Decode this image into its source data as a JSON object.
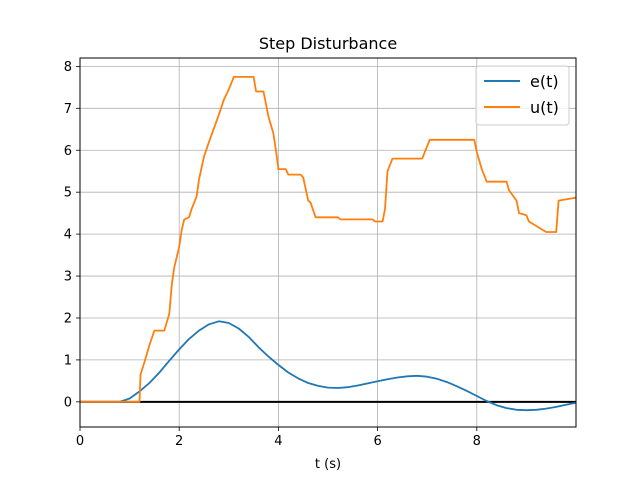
{
  "chart_data": {
    "type": "line",
    "title": "Step Disturbance",
    "xlabel": "t (s)",
    "ylabel": "",
    "xlim": [
      0,
      10
    ],
    "ylim": [
      -0.6,
      8.2
    ],
    "x_ticks": [
      0,
      2,
      4,
      6,
      8
    ],
    "x_tick_labels": [
      "0",
      "2",
      "4",
      "6",
      "8"
    ],
    "y_ticks": [
      0,
      1,
      2,
      3,
      4,
      5,
      6,
      7,
      8
    ],
    "y_tick_labels": [
      "0",
      "1",
      "2",
      "3",
      "4",
      "5",
      "6",
      "7",
      "8"
    ],
    "grid": true,
    "legend_position": "top-right",
    "reference_line": {
      "y": 0,
      "color": "#000000"
    },
    "series": [
      {
        "name": "e(t)",
        "color": "#1f77b4",
        "x": [
          0,
          0.8,
          1.0,
          1.2,
          1.4,
          1.6,
          1.8,
          2.0,
          2.2,
          2.4,
          2.6,
          2.8,
          3.0,
          3.2,
          3.4,
          3.6,
          3.8,
          4.0,
          4.2,
          4.4,
          4.6,
          4.8,
          5.0,
          5.2,
          5.4,
          5.6,
          5.8,
          6.0,
          6.2,
          6.4,
          6.6,
          6.8,
          7.0,
          7.2,
          7.4,
          7.6,
          7.8,
          8.0,
          8.2,
          8.4,
          8.6,
          8.8,
          9.0,
          9.2,
          9.4,
          9.6,
          9.8,
          10.0
        ],
        "y": [
          0,
          0,
          0.08,
          0.25,
          0.45,
          0.7,
          0.98,
          1.25,
          1.5,
          1.7,
          1.85,
          1.92,
          1.88,
          1.75,
          1.55,
          1.3,
          1.08,
          0.88,
          0.7,
          0.56,
          0.45,
          0.38,
          0.34,
          0.33,
          0.35,
          0.39,
          0.44,
          0.49,
          0.54,
          0.58,
          0.61,
          0.62,
          0.6,
          0.55,
          0.47,
          0.37,
          0.26,
          0.14,
          0.02,
          -0.08,
          -0.15,
          -0.19,
          -0.2,
          -0.19,
          -0.16,
          -0.12,
          -0.07,
          -0.02
        ]
      },
      {
        "name": "u(t)",
        "color": "#ff7f0e",
        "x": [
          0,
          1.2,
          1.22,
          1.3,
          1.4,
          1.5,
          1.55,
          1.6,
          1.7,
          1.8,
          1.85,
          1.9,
          2.0,
          2.05,
          2.1,
          2.2,
          2.25,
          2.35,
          2.4,
          2.5,
          2.6,
          2.8,
          2.9,
          3.0,
          3.1,
          3.15,
          3.5,
          3.55,
          3.7,
          3.8,
          3.9,
          3.95,
          4.0,
          4.15,
          4.2,
          4.45,
          4.5,
          4.6,
          4.65,
          4.75,
          4.8,
          5.2,
          5.25,
          5.9,
          5.95,
          6.1,
          6.15,
          6.2,
          6.3,
          6.4,
          6.9,
          7.0,
          7.05,
          7.95,
          8.0,
          8.1,
          8.2,
          8.25,
          8.6,
          8.65,
          8.8,
          8.85,
          9.0,
          9.05,
          9.4,
          9.45,
          9.6,
          9.65,
          10.0
        ],
        "y": [
          0,
          0,
          0.65,
          0.95,
          1.35,
          1.7,
          1.7,
          1.7,
          1.7,
          2.1,
          2.8,
          3.2,
          3.7,
          4.1,
          4.35,
          4.4,
          4.6,
          4.9,
          5.3,
          5.85,
          6.2,
          6.85,
          7.2,
          7.45,
          7.75,
          7.75,
          7.75,
          7.4,
          7.4,
          6.8,
          6.4,
          6.0,
          5.55,
          5.55,
          5.42,
          5.42,
          5.35,
          4.8,
          4.75,
          4.4,
          4.4,
          4.4,
          4.35,
          4.35,
          4.3,
          4.3,
          4.6,
          5.5,
          5.8,
          5.8,
          5.8,
          6.1,
          6.25,
          6.25,
          5.95,
          5.55,
          5.25,
          5.25,
          5.25,
          5.05,
          4.8,
          4.5,
          4.45,
          4.3,
          4.05,
          4.05,
          4.05,
          4.8,
          4.87
        ]
      }
    ]
  }
}
